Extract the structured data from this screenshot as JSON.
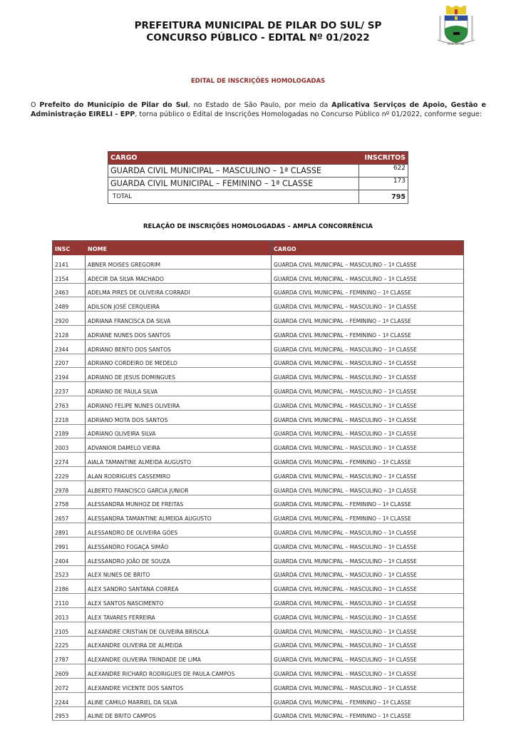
{
  "header": {
    "title_line1": "PREFEITURA MUNICIPAL DE PILAR DO SUL/ SP",
    "title_line2": "CONCURSO PÚBLICO - EDITAL Nº 01/2022",
    "crest_text": "PILAR DO SUL",
    "crest_icon": "municipal-coat-of-arms"
  },
  "subtitle": "EDITAL DE INSCRIÇÕES HOMOLOGADAS",
  "intro": {
    "p1": "O ",
    "b1": "Prefeito do Município de Pilar do Sul",
    "p2": ", no Estado de São Paulo, por meio da ",
    "b2": "Aplicativa Serviços de Apoio, Gestão e Administração EIRELI - EPP",
    "p3": ", torna público o Edital de Inscrições Homologadas no Concurso Público nº 01/2022, conforme segue:"
  },
  "summary": {
    "headers": [
      "CARGO",
      "INSCRITOS"
    ],
    "rows": [
      {
        "cargo": "GUARDA CIVIL MUNICIPAL – MASCULINO – 1ª CLASSE",
        "inscritos": "622"
      },
      {
        "cargo": "GUARDA CIVIL MUNICIPAL – FEMININO – 1ª CLASSE",
        "inscritos": "173"
      }
    ],
    "total_label": "TOTAL",
    "total_value": "795"
  },
  "list_title": "RELAÇÃO DE INSCRIÇÕES HOMOLOGADAS – AMPLA CONCORRÊNCIA",
  "colors": {
    "header_bg": "#963634",
    "subtitle": "#8b2e2c"
  },
  "list": {
    "headers": [
      "INSC",
      "NOME",
      "CARGO"
    ],
    "rows": [
      [
        "2141",
        "ABNER MOISES GREGORIM",
        "GUARDA CIVIL MUNICIPAL – MASCULINO – 1ª CLASSE"
      ],
      [
        "2154",
        "ADECIR DA SILVA MACHADO",
        "GUARDA CIVIL MUNICIPAL – MASCULINO – 1ª CLASSE"
      ],
      [
        "2463",
        "ADELMA PIRES DE OLIVEIRA CORRADI",
        "GUARDA CIVIL MUNICIPAL – FEMININO – 1ª CLASSE"
      ],
      [
        "2489",
        "ADILSON JOSÉ CERQUEIRA",
        "GUARDA CIVIL MUNICIPAL – MASCULINO – 1ª CLASSE"
      ],
      [
        "2920",
        "ADRIANA FRANCISCA DA SILVA",
        "GUARDA CIVIL MUNICIPAL – FEMININO – 1ª CLASSE"
      ],
      [
        "2128",
        "ADRIANE NUNES DOS SANTOS",
        "GUARDA CIVIL MUNICIPAL – FEMININO – 1ª CLASSE"
      ],
      [
        "2344",
        "ADRIANO BENTO DOS SANTOS",
        "GUARDA CIVIL MUNICIPAL – MASCULINO – 1ª CLASSE"
      ],
      [
        "2207",
        "ADRIANO CORDEIRO DE MEDELO",
        "GUARDA CIVIL MUNICIPAL – MASCULINO – 1ª CLASSE"
      ],
      [
        "2194",
        "ADRIANO DE JESUS DOMINGUES",
        "GUARDA CIVIL MUNICIPAL – MASCULINO – 1ª CLASSE"
      ],
      [
        "2237",
        "ADRIANO DE PAULA SILVA",
        "GUARDA CIVIL MUNICIPAL – MASCULINO – 1ª CLASSE"
      ],
      [
        "2763",
        "ADRIANO FELIPE NUNES OLIVEIRA",
        "GUARDA CIVIL MUNICIPAL – MASCULINO – 1ª CLASSE"
      ],
      [
        "2218",
        "ADRIANO MOTA DOS SANTOS",
        "GUARDA CIVIL MUNICIPAL – MASCULINO – 1ª CLASSE"
      ],
      [
        "2189",
        "ADRIANO OLIVEIRA SILVA",
        "GUARDA CIVIL MUNICIPAL – MASCULINO – 1ª CLASSE"
      ],
      [
        "2003",
        "ADVANIOR DAMELO VIEIRA",
        "GUARDA CIVIL MUNICIPAL – MASCULINO – 1ª CLASSE"
      ],
      [
        "2274",
        "AIALA TAMANTINE ALMEIDA AUGUSTO",
        "GUARDA CIVIL MUNICIPAL – FEMININO – 1ª CLASSE"
      ],
      [
        "2229",
        "ALAN RODRIGUES CASSEMIRO",
        "GUARDA CIVIL MUNICIPAL – MASCULINO – 1ª CLASSE"
      ],
      [
        "2978",
        "ALBERTO FRANCISCO GARCIA JUNIOR",
        "GUARDA CIVIL MUNICIPAL – MASCULINO – 1ª CLASSE"
      ],
      [
        "2758",
        "ALESSANDRA MUNHOZ DE FREITAS",
        "GUARDA CIVIL MUNICIPAL – FEMININO – 1ª CLASSE"
      ],
      [
        "2657",
        "ALESSANDRA TAMANTINE ALMEIDA AUGUSTO",
        "GUARDA CIVIL MUNICIPAL – FEMININO – 1ª CLASSE"
      ],
      [
        "2891",
        "ALESSANDRO DE OLIVEIRA GÓES",
        "GUARDA CIVIL MUNICIPAL – MASCULINO – 1ª CLASSE"
      ],
      [
        "2991",
        "ALESSANDRO FOGAÇA SIMÃO",
        "GUARDA CIVIL MUNICIPAL – MASCULINO – 1ª CLASSE"
      ],
      [
        "2404",
        "ALESSANDRO JOÃO DE SOUZA",
        "GUARDA CIVIL MUNICIPAL – MASCULINO – 1ª CLASSE"
      ],
      [
        "2523",
        "ALEX NUNES DE BRITO",
        "GUARDA CIVIL MUNICIPAL – MASCULINO – 1ª CLASSE"
      ],
      [
        "2186",
        "ALEX SANDRO SANTANA CORREA",
        "GUARDA CIVIL MUNICIPAL – MASCULINO – 1ª CLASSE"
      ],
      [
        "2110",
        "ALEX SANTOS NASCIMENTO",
        "GUARDA CIVIL MUNICIPAL – MASCULINO – 1ª CLASSE"
      ],
      [
        "2013",
        "ALEX TAVARES FERREIRA",
        "GUARDA CIVIL MUNICIPAL – MASCULINO – 1ª CLASSE"
      ],
      [
        "2105",
        "ALEXANDRE CRISTIAN DE OLIVEIRA BRISOLA",
        "GUARDA CIVIL MUNICIPAL – MASCULINO – 1ª CLASSE"
      ],
      [
        "2225",
        "ALEXANDRE OLIVEIRA DE ALMEIDA",
        "GUARDA CIVIL MUNICIPAL – MASCULINO – 1ª CLASSE"
      ],
      [
        "2787",
        "ALEXANDRE OLIVEIRA TRINDADE DE LIMA",
        "GUARDA CIVIL MUNICIPAL – MASCULINO – 1ª CLASSE"
      ],
      [
        "2609",
        "ALEXANDRE RICHARD RODRIGUES DE PAULA CAMPOS",
        "GUARDA CIVIL MUNICIPAL – MASCULINO – 1ª CLASSE"
      ],
      [
        "2072",
        "ALEXANDRE VICENTE DOS SANTOS",
        "GUARDA CIVIL MUNICIPAL – MASCULINO – 1ª CLASSE"
      ],
      [
        "2244",
        "ALINE CAMILO MARRIEL DA SILVA",
        "GUARDA CIVIL MUNICIPAL – FEMININO – 1ª CLASSE"
      ],
      [
        "2953",
        "ALINE DE BRITO CAMPOS",
        "GUARDA CIVIL MUNICIPAL – FEMININO – 1ª CLASSE"
      ]
    ]
  }
}
